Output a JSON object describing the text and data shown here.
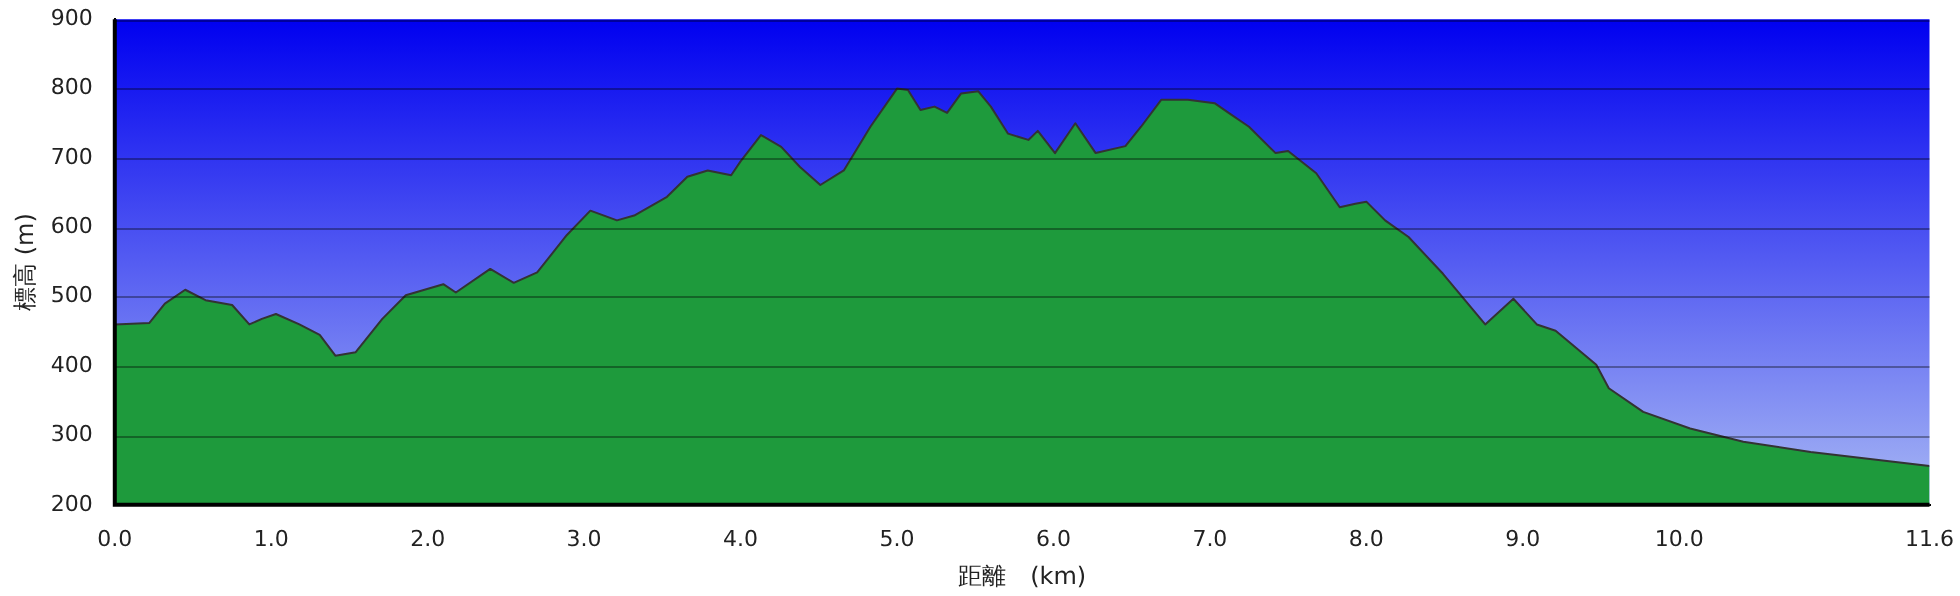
{
  "chart_data": {
    "type": "area",
    "xlabel": "距離　(km)",
    "ylabel": "標高 (m)",
    "x": [
      0,
      0.22,
      0.32,
      0.45,
      0.58,
      0.75,
      0.86,
      0.94,
      1.03,
      1.18,
      1.31,
      1.41,
      1.54,
      1.71,
      1.86,
      2.1,
      2.18,
      2.4,
      2.55,
      2.7,
      2.89,
      3.04,
      3.21,
      3.32,
      3.53,
      3.66,
      3.79,
      3.94,
      4.0,
      4.13,
      4.26,
      4.38,
      4.51,
      4.66,
      4.83,
      5.0,
      5.07,
      5.15,
      5.24,
      5.32,
      5.41,
      5.52,
      5.6,
      5.71,
      5.84,
      5.9,
      6.01,
      6.14,
      6.27,
      6.46,
      6.56,
      6.69,
      6.86,
      7.03,
      7.12,
      7.25,
      7.42,
      7.5,
      7.68,
      7.83,
      7.93,
      8.0,
      8.12,
      8.27,
      8.49,
      8.76,
      8.94,
      9.09,
      9.21,
      9.47,
      9.55,
      9.77,
      10.07,
      10.41,
      10.84,
      11.22,
      11.6
    ],
    "series": [
      {
        "color": "#1e9a3c",
        "values": [
          460,
          462,
          490,
          510,
          495,
          488,
          460,
          468,
          475,
          460,
          445,
          415,
          420,
          468,
          502,
          518,
          506,
          540,
          520,
          535,
          589,
          624,
          610,
          617,
          644,
          673,
          682,
          675,
          695,
          733,
          716,
          687,
          661,
          682,
          745,
          800,
          798,
          769,
          774,
          765,
          793,
          796,
          774,
          735,
          726,
          739,
          707,
          750,
          707,
          717,
          745,
          784,
          784,
          779,
          765,
          745,
          707,
          710,
          678,
          629,
          634,
          637,
          610,
          586,
          533,
          460,
          497,
          460,
          451,
          402,
          368,
          334,
          310,
          291,
          276,
          266,
          256
        ]
      }
    ],
    "xlim": [
      0,
      11.6
    ],
    "ylim": [
      200,
      900
    ],
    "xticks": [
      {
        "value": 0,
        "label": "0.0"
      },
      {
        "value": 1,
        "label": "1.0"
      },
      {
        "value": 2,
        "label": "2.0"
      },
      {
        "value": 3,
        "label": "3.0"
      },
      {
        "value": 4,
        "label": "4.0"
      },
      {
        "value": 5,
        "label": "5.0"
      },
      {
        "value": 6,
        "label": "6.0"
      },
      {
        "value": 7,
        "label": "7.0"
      },
      {
        "value": 8,
        "label": "8.0"
      },
      {
        "value": 9,
        "label": "9.0"
      },
      {
        "value": 10,
        "label": "10.0"
      },
      {
        "value": 11.6,
        "label": "11.6"
      }
    ],
    "yticks": [
      200,
      300,
      400,
      500,
      600,
      700,
      800,
      900
    ],
    "grid": "y",
    "legend": false
  }
}
